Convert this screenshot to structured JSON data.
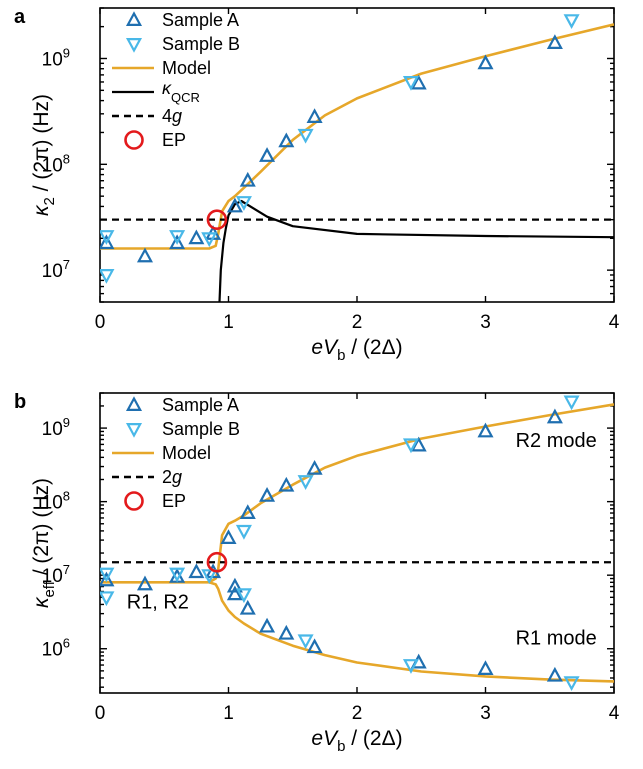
{
  "colors": {
    "sample_a": "#1f6fb0",
    "sample_b": "#49b8e8",
    "model": "#e6a72a",
    "qcr": "#000000",
    "threshold": "#000000",
    "ep": "#e31a1c"
  },
  "chart_data": [
    {
      "panel": "a",
      "type": "scatter",
      "xlabel": {
        "e": "e",
        "v": "V",
        "sub": "b",
        "rest": " / (2Δ)"
      },
      "ylabel": {
        "kappa": "κ",
        "sub": "2",
        "rest": " / (2π)  (Hz)"
      },
      "xlim": [
        0,
        4
      ],
      "ylim": [
        5000000,
        3000000000
      ],
      "yscale": "log",
      "xticks": [
        0,
        1,
        2,
        3,
        4
      ],
      "xtick_labels": [
        "0",
        "1",
        "2",
        "3",
        "4"
      ],
      "ytick_labels": [
        {
          "value": 10000000,
          "base": "10",
          "exp": "7"
        },
        {
          "value": 100000000,
          "base": "10",
          "exp": "8"
        },
        {
          "value": 1000000000,
          "base": "10",
          "exp": "9"
        }
      ],
      "legend": {
        "position": "top-left",
        "entries": [
          {
            "key": "sample_a",
            "label": "Sample A"
          },
          {
            "key": "sample_b",
            "label": "Sample B"
          },
          {
            "key": "model",
            "label": "Model"
          },
          {
            "key": "qcr",
            "label": "κ",
            "sub": "QCR"
          },
          {
            "key": "threshold",
            "label": "4",
            "italic": "g"
          },
          {
            "key": "ep",
            "label": "EP"
          }
        ]
      },
      "series": [
        {
          "key": "sample_a",
          "marker": "triangle-up",
          "name": "Sample A",
          "x": [
            0.05,
            0.35,
            0.6,
            0.75,
            0.88,
            1.05,
            1.15,
            1.3,
            1.45,
            1.67,
            2.48,
            3.0,
            3.54
          ],
          "y": [
            18000000,
            13500000,
            18000000,
            20000000,
            22000000,
            40000000,
            70000000,
            120000000,
            165000000,
            280000000,
            580000000,
            900000000,
            1400000000
          ]
        },
        {
          "key": "sample_b",
          "marker": "triangle-down",
          "name": "Sample B",
          "x": [
            0.05,
            0.05,
            0.6,
            0.85,
            1.12,
            1.6,
            2.42,
            3.67
          ],
          "y": [
            21000000,
            9000000,
            21000000,
            20000000,
            44000000,
            190000000,
            600000000,
            2300000000
          ]
        },
        {
          "key": "model",
          "style": "line",
          "name": "Model",
          "x": [
            0,
            0.85,
            0.9,
            0.92,
            0.95,
            1.0,
            1.05,
            1.12,
            1.25,
            1.5,
            1.75,
            2.0,
            2.5,
            3.0,
            3.5,
            4.0
          ],
          "y": [
            16000000,
            16000000,
            17000000,
            22000000,
            36000000,
            45000000,
            50000000,
            60000000,
            85000000,
            170000000,
            290000000,
            420000000,
            720000000,
            1050000000,
            1500000000,
            2100000000
          ]
        },
        {
          "key": "qcr",
          "style": "line",
          "name": "κQCR",
          "x": [
            0.93,
            0.94,
            0.96,
            0.98,
            1.0,
            1.05,
            1.1,
            1.2,
            1.3,
            1.5,
            2.0,
            3.0,
            4.0
          ],
          "y": [
            5000000,
            10000000,
            18000000,
            25000000,
            33000000,
            42000000,
            45000000,
            38000000,
            32000000,
            26000000,
            22000000,
            21000000,
            20500000
          ]
        },
        {
          "key": "threshold",
          "style": "dashed",
          "name": "4g",
          "y_const": 30000000
        },
        {
          "key": "ep",
          "marker": "circle",
          "name": "EP",
          "x": [
            0.91
          ],
          "y": [
            30000000
          ]
        }
      ],
      "annotations": []
    },
    {
      "panel": "b",
      "type": "scatter",
      "xlabel": {
        "e": "e",
        "v": "V",
        "sub": "b",
        "rest": " / (2Δ)"
      },
      "ylabel": {
        "kappa": "κ",
        "sub": "eff",
        "rest": " / (2π)  (Hz)"
      },
      "xlim": [
        0,
        4
      ],
      "ylim": [
        250000,
        3000000000
      ],
      "yscale": "log",
      "xticks": [
        0,
        1,
        2,
        3,
        4
      ],
      "xtick_labels": [
        "0",
        "1",
        "2",
        "3",
        "4"
      ],
      "ytick_labels": [
        {
          "value": 1000000,
          "base": "10",
          "exp": "6"
        },
        {
          "value": 10000000,
          "base": "10",
          "exp": "7"
        },
        {
          "value": 100000000,
          "base": "10",
          "exp": "8"
        },
        {
          "value": 1000000000,
          "base": "10",
          "exp": "9"
        }
      ],
      "legend": {
        "position": "top-left",
        "entries": [
          {
            "key": "sample_a",
            "label": "Sample A"
          },
          {
            "key": "sample_b",
            "label": "Sample B"
          },
          {
            "key": "model",
            "label": "Model"
          },
          {
            "key": "threshold",
            "label": "2",
            "italic": "g"
          },
          {
            "key": "ep",
            "label": "EP"
          }
        ]
      },
      "series": [
        {
          "key": "sample_a",
          "marker": "triangle-up",
          "name": "Sample A",
          "x": [
            0.05,
            0.35,
            0.6,
            0.75,
            0.88,
            1.0,
            1.05,
            1.15,
            1.3,
            1.45,
            1.67,
            2.48,
            3.0,
            3.54,
            1.05,
            1.15,
            1.3,
            1.45,
            1.67,
            2.48,
            3.0,
            3.54
          ],
          "y": [
            8500000,
            7500000,
            9500000,
            11000000,
            11000000,
            32000000,
            7000000,
            70000000,
            120000000,
            165000000,
            280000000,
            580000000,
            900000000,
            1400000000,
            5500000,
            3500000,
            2000000,
            1600000,
            1050000,
            650000,
            530000,
            430000
          ]
        },
        {
          "key": "sample_b",
          "marker": "triangle-down",
          "name": "Sample B",
          "x": [
            0.05,
            0.05,
            0.6,
            0.85,
            1.12,
            1.12,
            1.6,
            1.6,
            2.42,
            2.42,
            3.67,
            3.67
          ],
          "y": [
            10500000,
            5000000,
            10500000,
            10000000,
            40000000,
            5500000,
            190000000,
            1300000,
            600000000,
            600000,
            2300000000,
            350000
          ]
        },
        {
          "key": "model",
          "style": "line",
          "name": "Model (R2)",
          "x": [
            0,
            0.85,
            0.9,
            0.92,
            0.95,
            1.0,
            1.05,
            1.12,
            1.25,
            1.5,
            1.75,
            2.0,
            2.5,
            3.0,
            3.5,
            4.0
          ],
          "y": [
            8000000,
            8000000,
            9000000,
            12000000,
            35000000,
            50000000,
            55000000,
            65000000,
            95000000,
            170000000,
            290000000,
            420000000,
            720000000,
            1050000000,
            1500000000,
            2100000000
          ]
        },
        {
          "key": "model",
          "style": "line",
          "name": "Model (R1)",
          "x": [
            0.85,
            0.9,
            0.92,
            0.95,
            1.0,
            1.05,
            1.12,
            1.25,
            1.5,
            1.75,
            2.0,
            2.5,
            3.0,
            3.5,
            4.0
          ],
          "y": [
            8000000,
            7500000,
            6500000,
            4500000,
            3300000,
            2700000,
            2200000,
            1600000,
            1100000,
            820000,
            650000,
            490000,
            420000,
            380000,
            360000
          ]
        },
        {
          "key": "threshold",
          "style": "dashed",
          "name": "2g",
          "y_const": 15000000
        },
        {
          "key": "ep",
          "marker": "circle",
          "name": "EP",
          "x": [
            0.91
          ],
          "y": [
            15000000
          ]
        }
      ],
      "annotations": [
        {
          "text": "R2 mode",
          "x": 3.55,
          "y": 550000000
        },
        {
          "text": "R1 mode",
          "x": 3.55,
          "y": 1150000
        },
        {
          "text": "R1, R2",
          "x": 0.45,
          "y": 3500000
        }
      ]
    }
  ]
}
